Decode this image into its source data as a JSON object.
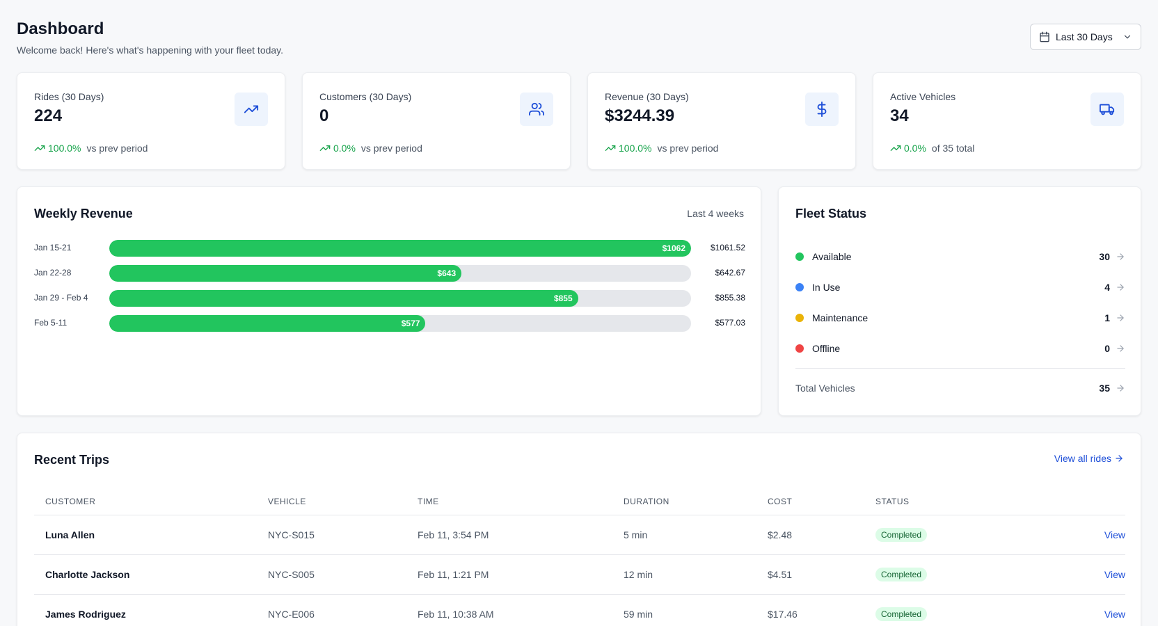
{
  "header": {
    "title": "Dashboard",
    "subtitle": "Welcome back! Here's what's happening with your fleet today.",
    "date_range": "Last 30 Days"
  },
  "kpis": [
    {
      "label": "Rides (30 Days)",
      "value": "224",
      "trend": "100.0%",
      "context": "vs prev period",
      "icon": "trending-up-icon"
    },
    {
      "label": "Customers (30 Days)",
      "value": "0",
      "trend": "0.0%",
      "context": "vs prev period",
      "icon": "users-icon"
    },
    {
      "label": "Revenue (30 Days)",
      "value": "$3244.39",
      "trend": "100.0%",
      "context": "vs prev period",
      "icon": "dollar-icon"
    },
    {
      "label": "Active Vehicles",
      "value": "34",
      "trend": "0.0%",
      "context": "of 35 total",
      "icon": "truck-icon"
    }
  ],
  "weekly_revenue": {
    "title": "Weekly Revenue",
    "range": "Last 4 weeks",
    "max": 1061.52,
    "rows": [
      {
        "label": "Jan 15-21",
        "bar_label": "$1062",
        "value_label": "$1061.52",
        "value": 1061.52
      },
      {
        "label": "Jan 22-28",
        "bar_label": "$643",
        "value_label": "$642.67",
        "value": 642.67
      },
      {
        "label": "Jan 29 - Feb 4",
        "bar_label": "$855",
        "value_label": "$855.38",
        "value": 855.38
      },
      {
        "label": "Feb 5-11",
        "bar_label": "$577",
        "value_label": "$577.03",
        "value": 577.03
      }
    ]
  },
  "fleet_status": {
    "title": "Fleet Status",
    "items": [
      {
        "label": "Available",
        "count": "30",
        "color": "#22c55e"
      },
      {
        "label": "In Use",
        "count": "4",
        "color": "#3b82f6"
      },
      {
        "label": "Maintenance",
        "count": "1",
        "color": "#eab308"
      },
      {
        "label": "Offline",
        "count": "0",
        "color": "#ef4444"
      }
    ],
    "total_label": "Total Vehicles",
    "total_count": "35"
  },
  "recent_trips": {
    "title": "Recent Trips",
    "view_all": "View all rides",
    "columns": [
      "CUSTOMER",
      "VEHICLE",
      "TIME",
      "DURATION",
      "COST",
      "STATUS"
    ],
    "rows": [
      {
        "customer": "Luna Allen",
        "vehicle": "NYC-S015",
        "time": "Feb 11, 3:54 PM",
        "duration": "5 min",
        "cost": "$2.48",
        "status": "Completed",
        "action": "View"
      },
      {
        "customer": "Charlotte Jackson",
        "vehicle": "NYC-S005",
        "time": "Feb 11, 1:21 PM",
        "duration": "12 min",
        "cost": "$4.51",
        "status": "Completed",
        "action": "View"
      },
      {
        "customer": "James Rodriguez",
        "vehicle": "NYC-E006",
        "time": "Feb 11, 10:38 AM",
        "duration": "59 min",
        "cost": "$17.46",
        "status": "Completed",
        "action": "View"
      }
    ]
  },
  "colors": {
    "accent": "#22c55e",
    "link": "#1d4ed8",
    "icon_bg": "#eef4fd"
  }
}
